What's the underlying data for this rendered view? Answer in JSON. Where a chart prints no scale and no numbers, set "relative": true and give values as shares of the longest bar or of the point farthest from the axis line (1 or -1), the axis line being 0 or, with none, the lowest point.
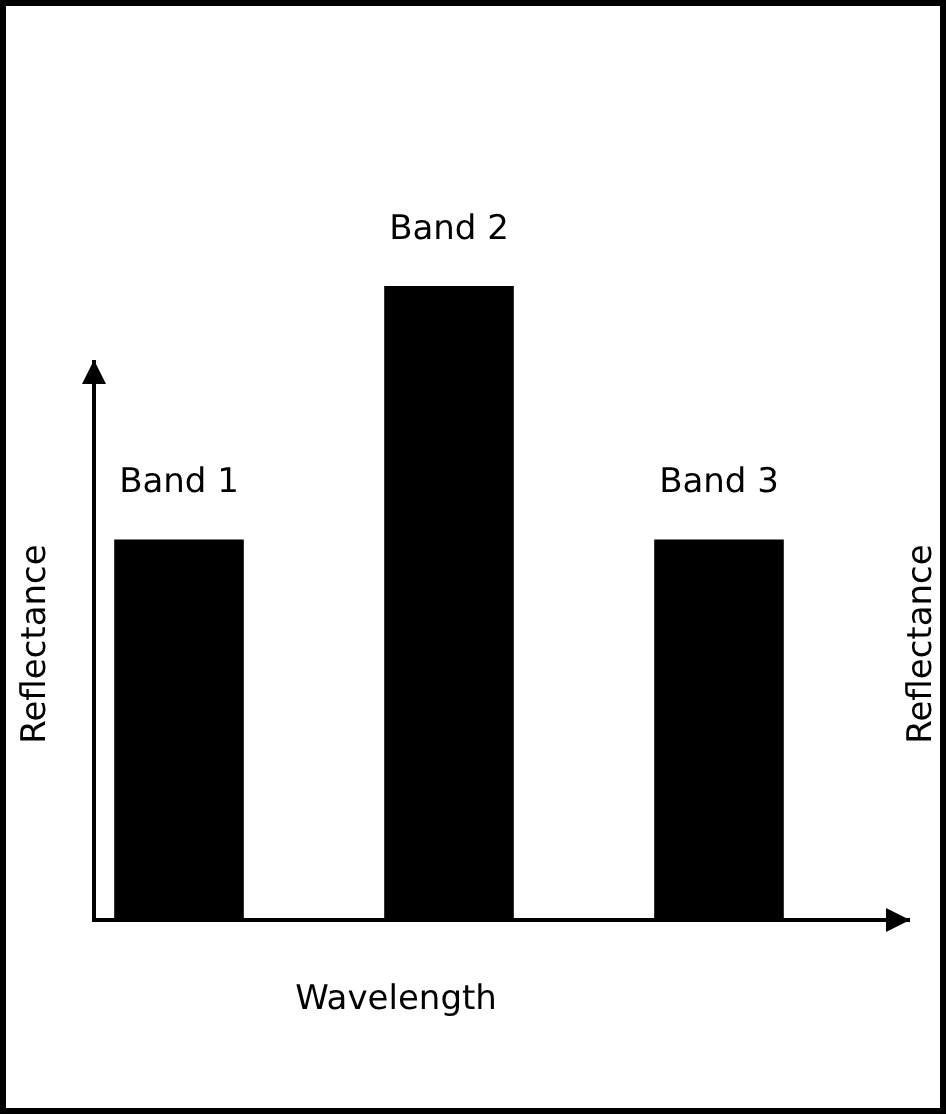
{
  "chart_data": {
    "type": "bar",
    "relative": true,
    "categories": [
      "Band 1",
      "Band 2",
      "Band 3"
    ],
    "values": [
      0.6,
      1,
      0.6
    ],
    "color": "#000000",
    "xlabel": "Wavelength",
    "ylabel": "Reflectance",
    "y2label": "Reflectance"
  }
}
